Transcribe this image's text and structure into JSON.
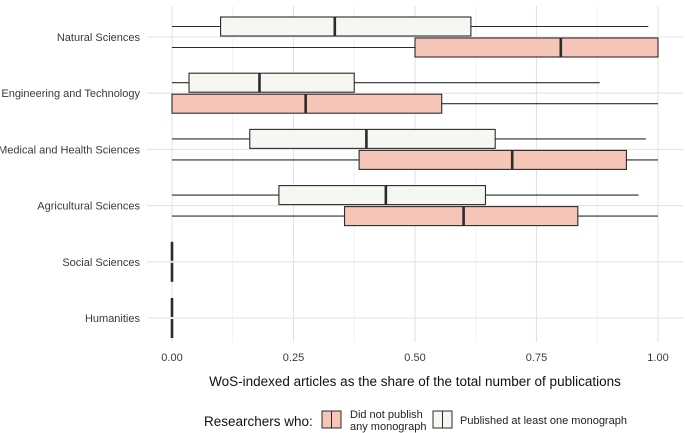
{
  "chart_data": {
    "type": "boxplot",
    "orientation": "horizontal",
    "title": "",
    "xlabel": "WoS-indexed articles as the share of the total number of publications",
    "ylabel": "",
    "xlim": [
      0,
      1
    ],
    "xticks": [
      0,
      0.25,
      0.5,
      0.75,
      1
    ],
    "xtick_labels": [
      "0.00",
      "0.25",
      "0.50",
      "0.75",
      "1.00"
    ],
    "grid": true,
    "legend_title": "Researchers who:",
    "legend_position": "bottom",
    "categories": [
      "Natural Sciences",
      "Engineering and Technology",
      "Medical and Health Sciences",
      "Agricultural Sciences",
      "Social Sciences",
      "Humanities"
    ],
    "series": [
      {
        "name": "Did not publish any monograph",
        "legend_lines": [
          "Did not publish",
          "any monograph"
        ],
        "fill": "#f5c6b8",
        "boxes": [
          {
            "min": 0.0,
            "q1": 0.5,
            "median": 0.8,
            "q3": 1.0,
            "max": 1.0
          },
          {
            "min": 0.0,
            "q1": 0.0,
            "median": 0.275,
            "q3": 0.555,
            "max": 1.0
          },
          {
            "min": 0.0,
            "q1": 0.385,
            "median": 0.7,
            "q3": 0.935,
            "max": 1.0
          },
          {
            "min": 0.0,
            "q1": 0.355,
            "median": 0.6,
            "q3": 0.835,
            "max": 1.0
          },
          {
            "min": 0.0,
            "q1": 0.0,
            "median": 0.0,
            "q3": 0.0,
            "max": 0.0
          },
          {
            "min": 0.0,
            "q1": 0.0,
            "median": 0.0,
            "q3": 0.0,
            "max": 0.0
          }
        ]
      },
      {
        "name": "Published at least one monograph",
        "legend_lines": [
          "Published at least one monograph"
        ],
        "fill": "#f7f7f2",
        "boxes": [
          {
            "min": 0.0,
            "q1": 0.1,
            "median": 0.335,
            "q3": 0.615,
            "max": 0.98
          },
          {
            "min": 0.0,
            "q1": 0.035,
            "median": 0.18,
            "q3": 0.375,
            "max": 0.88
          },
          {
            "min": 0.0,
            "q1": 0.16,
            "median": 0.4,
            "q3": 0.665,
            "max": 0.975
          },
          {
            "min": 0.0,
            "q1": 0.22,
            "median": 0.44,
            "q3": 0.645,
            "max": 0.96
          },
          {
            "min": 0.0,
            "q1": 0.0,
            "median": 0.0,
            "q3": 0.0,
            "max": 0.0
          },
          {
            "min": 0.0,
            "q1": 0.0,
            "median": 0.0,
            "q3": 0.0,
            "max": 0.0
          }
        ]
      }
    ]
  }
}
